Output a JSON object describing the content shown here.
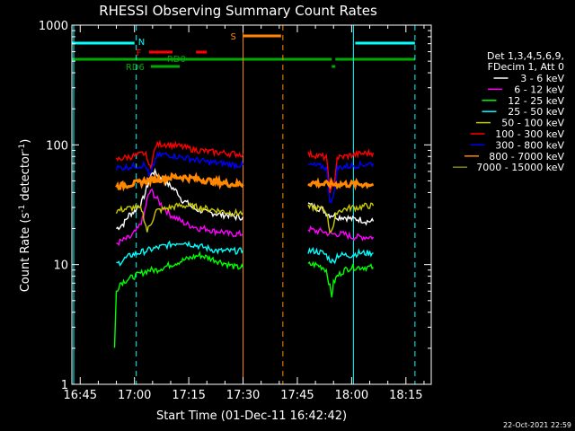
{
  "chart_data": {
    "type": "line",
    "title": "RHESSI Observing Summary Count Rates",
    "xlabel": "Start Time (01-Dec-11 16:42:42)",
    "ylabel": "Count Rate (s",
    "ylabel_sup": "-1",
    "ylabel_rest": " detector",
    "ylabel_sup2": "-1",
    "ylabel_end": ")",
    "yscale": "log",
    "ylim": [
      1,
      1000
    ],
    "xlim_min": [
      42.7,
      142
    ],
    "x_ticks": [
      {
        "min": 45,
        "label": "16:45"
      },
      {
        "min": 60,
        "label": "17:00"
      },
      {
        "min": 75,
        "label": "17:15"
      },
      {
        "min": 90,
        "label": "17:30"
      },
      {
        "min": 105,
        "label": "17:45"
      },
      {
        "min": 120,
        "label": "18:00"
      },
      {
        "min": 135,
        "label": "18:15"
      }
    ],
    "y_ticks": [
      {
        "value": 1,
        "label": "1"
      },
      {
        "value": 10,
        "label": "10"
      },
      {
        "value": 100,
        "label": "100"
      },
      {
        "value": 1000,
        "label": "1000"
      }
    ],
    "legend_header": [
      "Det 1,3,4,5,6,9,",
      "FDecim 1, Att 0"
    ],
    "legend_placement": "right",
    "series": [
      {
        "name": "3 - 6 keV",
        "color": "#ffffff",
        "segments": [
          {
            "x": [
              55,
              57,
              58.5,
              60,
              62,
              63,
              64,
              65,
              67,
              69,
              70,
              72,
              73,
              75,
              76,
              77,
              79,
              80,
              82,
              84,
              86,
              88,
              90
            ],
            "y": [
              20,
              22,
              26,
              28,
              33,
              40,
              50,
              60,
              55,
              48,
              45,
              40,
              35,
              32,
              30,
              29,
              28,
              27,
              27,
              26,
              26,
              25,
              25
            ]
          },
          {
            "x": [
              108,
              110,
              112,
              113,
              114,
              115,
              116,
              118,
              120,
              122,
              124,
              126
            ],
            "y": [
              32,
              30,
              29,
              27,
              26,
              26,
              25,
              25,
              24,
              24,
              23,
              23
            ]
          }
        ]
      },
      {
        "name": "6 - 12 keV",
        "color": "#ff00ff",
        "segments": [
          {
            "x": [
              55,
              57,
              59,
              61,
              62.5,
              63.5,
              64.5,
              66,
              68,
              70,
              72,
              74,
              76,
              78,
              80,
              82,
              84,
              86,
              88,
              90
            ],
            "y": [
              15,
              16,
              17,
              20,
              25,
              35,
              42,
              36,
              30,
              26,
              24,
              22,
              21,
              20,
              20,
              19,
              19,
              18,
              18,
              18
            ]
          },
          {
            "x": [
              108,
              110,
              112,
              114,
              116,
              118,
              120,
              122,
              124,
              126
            ],
            "y": [
              20,
              19,
              19,
              18,
              18,
              18,
              17,
              17,
              17,
              17
            ]
          }
        ]
      },
      {
        "name": "12 - 25 keV",
        "color": "#00ff00",
        "segments": [
          {
            "x": [
              54.5,
              55,
              56,
              58,
              60,
              62,
              64,
              66,
              68,
              70,
              72,
              74,
              76,
              78,
              80,
              82,
              84,
              86,
              88,
              90
            ],
            "y": [
              2,
              6,
              7,
              7.5,
              8,
              8.5,
              9,
              9,
              9.5,
              10,
              10.5,
              11,
              11.5,
              12,
              11.5,
              11,
              10.5,
              10,
              9.5,
              9.5
            ]
          },
          {
            "x": [
              108,
              110,
              112,
              113,
              114,
              114.5,
              115,
              116,
              118,
              120,
              122,
              124,
              126
            ],
            "y": [
              10,
              10,
              9.5,
              9,
              6.5,
              5.5,
              7,
              8,
              9,
              9.5,
              9.5,
              9.5,
              9.5
            ]
          }
        ]
      },
      {
        "name": "25 - 50 keV",
        "color": "#00ffff",
        "segments": [
          {
            "x": [
              55,
              57,
              59,
              61,
              63,
              65,
              67,
              69,
              71,
              73,
              75,
              77,
              79,
              81,
              83,
              85,
              87,
              90
            ],
            "y": [
              10,
              11,
              12,
              12.5,
              13,
              13.5,
              14,
              14.5,
              15,
              15.5,
              15,
              14.5,
              14,
              13.5,
              13,
              13,
              13,
              13
            ]
          },
          {
            "x": [
              108,
              110,
              112,
              113,
              114,
              115,
              116,
              118,
              120,
              122,
              124,
              126
            ],
            "y": [
              13,
              13,
              12.5,
              12,
              11,
              10.5,
              12,
              12,
              12,
              12.5,
              12.5,
              12.5
            ]
          }
        ]
      },
      {
        "name": "50 - 100 keV",
        "color": "#c8c800",
        "segments": [
          {
            "x": [
              55,
              57,
              60,
              62,
              63.5,
              64.5,
              66,
              68,
              70,
              72,
              75,
              78,
              81,
              84,
              87,
              90
            ],
            "y": [
              28,
              29,
              30,
              29,
              19,
              22,
              28,
              29,
              30,
              31,
              31,
              30,
              29,
              28,
              27,
              27
            ]
          },
          {
            "x": [
              108,
              110,
              112,
              113,
              114,
              115,
              116,
              118,
              120,
              122,
              124,
              126
            ],
            "y": [
              30,
              30,
              29,
              28,
              19,
              21,
              28,
              29,
              30,
              30,
              31,
              31
            ]
          }
        ]
      },
      {
        "name": "100 - 300 keV",
        "color": "#ff0000",
        "segments": [
          {
            "x": [
              55,
              57,
              59,
              61,
              62.5,
              63.5,
              64,
              64.5,
              66,
              68,
              70,
              72,
              74,
              76,
              78,
              80,
              82,
              84,
              86,
              88,
              90
            ],
            "y": [
              75,
              78,
              80,
              82,
              85,
              80,
              65,
              68,
              100,
              102,
              100,
              98,
              95,
              92,
              90,
              88,
              87,
              86,
              85,
              84,
              84
            ]
          },
          {
            "x": [
              108,
              110,
              112,
              113,
              114,
              115,
              116,
              118,
              120,
              122,
              124,
              126
            ],
            "y": [
              84,
              82,
              80,
              78,
              42,
              44,
              78,
              80,
              82,
              84,
              85,
              86
            ]
          }
        ]
      },
      {
        "name": "300 - 800 keV",
        "color": "#0000ff",
        "segments": [
          {
            "x": [
              55,
              57,
              59,
              61,
              62.5,
              63.5,
              64,
              64.5,
              66,
              68,
              70,
              72,
              74,
              76,
              78,
              80,
              82,
              84,
              86,
              88,
              90
            ],
            "y": [
              64,
              65,
              66,
              67,
              68,
              64,
              55,
              57,
              80,
              83,
              82,
              80,
              78,
              76,
              74,
              72,
              71,
              70,
              69,
              68,
              68
            ]
          },
          {
            "x": [
              108,
              110,
              112,
              113,
              114,
              115,
              116,
              118,
              120,
              122,
              124,
              126
            ],
            "y": [
              68,
              67,
              66,
              64,
              34,
              36,
              64,
              66,
              67,
              68,
              69,
              70
            ]
          }
        ]
      },
      {
        "name": "800 - 7000 keV",
        "color": "#ff8800",
        "segments": [
          {
            "x": [
              55,
              57,
              59,
              61,
              63,
              65,
              67,
              69,
              71,
              73,
              75,
              77,
              79,
              81,
              83,
              85,
              87,
              90
            ],
            "y": [
              45,
              46,
              47,
              48,
              50,
              51,
              52,
              53,
              54,
              54,
              53,
              52,
              51,
              50,
              49,
              48,
              47,
              47
            ]
          },
          {
            "x": [
              108,
              110,
              112,
              114,
              116,
              118,
              120,
              122,
              124,
              126
            ],
            "y": [
              48,
              48,
              47,
              47,
              47,
              47,
              47,
              47,
              47,
              47
            ]
          }
        ]
      },
      {
        "name": "7000 - 15000 keV",
        "color": "#888800",
        "segments": []
      }
    ],
    "bars": [
      {
        "label": "N",
        "color": "#00ffff",
        "segments": [
          [
            42.7,
            60
          ],
          [
            121,
            137.5
          ]
        ],
        "level": "top"
      },
      {
        "label": "S",
        "color": "#ff8800",
        "segments": [
          [
            90,
            100.5
          ]
        ],
        "level": "top2"
      },
      {
        "label": "F",
        "color": "#ff0000",
        "segments": [
          [
            64,
            70.5
          ],
          [
            77,
            80
          ]
        ],
        "level": "mid"
      },
      {
        "label": "RD0",
        "color": "#00aa00",
        "segments": [
          [
            42.7,
            114.5
          ],
          [
            115.5,
            137.5
          ]
        ],
        "level": "band"
      },
      {
        "label": "RD6",
        "color": "#00aa00",
        "segments": [
          [
            64.5,
            72.5
          ],
          [
            114.5,
            115.5
          ]
        ],
        "level": "low"
      }
    ],
    "vlines": [
      {
        "x": 43.2,
        "color": "#00ffff",
        "style": "solid"
      },
      {
        "x": 60.5,
        "color": "#00ffff",
        "style": "dashed"
      },
      {
        "x": 90,
        "color": "#ff8800",
        "style": "solid"
      },
      {
        "x": 101,
        "color": "#ff8800",
        "style": "dashed"
      },
      {
        "x": 120.5,
        "color": "#00ffff",
        "style": "solid"
      },
      {
        "x": 137.5,
        "color": "#00ffff",
        "style": "dashed"
      }
    ],
    "grid": false
  },
  "footer": {
    "timestamp": "22-Oct-2021 22:59"
  }
}
